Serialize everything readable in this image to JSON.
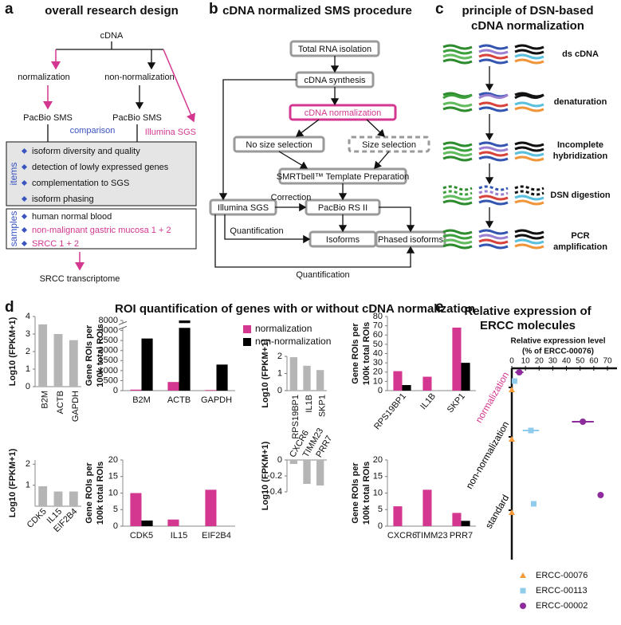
{
  "panel_a": {
    "label": "a",
    "title": "overall research design",
    "root": "cDNA",
    "branches": [
      "normalization",
      "non-normalization"
    ],
    "platforms": [
      "PacBio SMS",
      "PacBio SMS",
      "Illumina SGS"
    ],
    "comparison": "comparison",
    "items_label": "items",
    "items": [
      "isoform diversity and quality",
      "detection of lowly expressed genes",
      "complementation to SGS",
      "isoform phasing"
    ],
    "samples_label": "samples",
    "samples": [
      "human normal blood",
      "non-malignant gastric mucosa 1 + 2",
      "SRCC 1 + 2"
    ],
    "result": "SRCC transcriptome"
  },
  "panel_b": {
    "label": "b",
    "title": "cDNA normalized SMS procedure",
    "boxes": [
      "Total RNA isolation",
      "cDNA synthesis",
      "cDNA normalization",
      "No size selection",
      "Size selection",
      "SMRTbell™ Template Preparation",
      "Illumina SGS",
      "PacBio RS II",
      "Isoforms",
      "Phased isoforms"
    ],
    "edge_labels": [
      "Correction",
      "Quantification",
      "Quantification"
    ]
  },
  "panel_c": {
    "label": "c",
    "title": [
      "principle of DSN-based",
      "cDNA normalization"
    ],
    "steps": [
      "ds cDNA",
      "denaturation",
      [
        "Incomplete",
        "hybridization"
      ],
      "DSN digestion",
      [
        "PCR",
        "amplification"
      ]
    ]
  },
  "panel_d": {
    "label": "d",
    "title": "ROI quantification of genes with or without cDNA normalization"
  },
  "panel_e": {
    "label": "e"
  },
  "chart_data": [
    {
      "type": "bar",
      "ylabel": "Log10 (FPKM+1)",
      "categories": [
        "B2M",
        "ACTB",
        "GAPDH"
      ],
      "values": [
        3.55,
        3.0,
        2.65
      ],
      "color": "#b5b5b5",
      "ylim": [
        0,
        4
      ],
      "yticks": [
        0,
        1,
        2,
        3,
        4
      ]
    },
    {
      "type": "bar",
      "ylabel": [
        "Gene ROIs per",
        "100k total ROIs"
      ],
      "categories": [
        "B2M",
        "ACTB",
        "GAPDH"
      ],
      "series": [
        {
          "name": "normalization",
          "color": "#d4378f",
          "values": [
            50,
            430,
            30
          ]
        },
        {
          "name": "non-normalization",
          "color": "#000000",
          "values": [
            2600,
            8000,
            1300
          ]
        }
      ],
      "ylim": [
        0,
        8000
      ],
      "yticks": [
        0,
        500,
        1000,
        1500,
        2000,
        2500,
        3000,
        8000
      ],
      "broken_axis": true,
      "legend": true
    },
    {
      "type": "bar",
      "ylabel": "Log10 (FPKM+1)",
      "categories": [
        "RPS19BP1",
        "IL1B",
        "SKP1"
      ],
      "values": [
        1.95,
        1.45,
        1.2
      ],
      "color": "#b5b5b5",
      "ylim": [
        0,
        2
      ],
      "yticks": [
        0,
        1,
        2
      ]
    },
    {
      "type": "bar",
      "ylabel": [
        "Gene ROIs per",
        "100k total ROIs"
      ],
      "categories": [
        "RPS19BP1",
        "IL1B",
        "SKP1"
      ],
      "series": [
        {
          "color": "#d4378f",
          "values": [
            21,
            15,
            68
          ]
        },
        {
          "color": "#000000",
          "values": [
            6,
            0,
            30
          ]
        }
      ],
      "ylim": [
        0,
        80
      ],
      "yticks": [
        0,
        10,
        20,
        30,
        40,
        50,
        60,
        70,
        80
      ]
    },
    {
      "type": "bar",
      "ylabel": "Log10 (FPKM+1)",
      "categories": [
        "CDK5",
        "IL15",
        "EIF2B4"
      ],
      "values": [
        0.95,
        0.7,
        0.7
      ],
      "color": "#b5b5b5",
      "ylim": [
        0,
        2.2
      ],
      "yticks": [
        1,
        2
      ]
    },
    {
      "type": "bar",
      "ylabel": [
        "Gene ROIs per",
        "100k total ROIs"
      ],
      "categories": [
        "CDK5",
        "IL15",
        "EIF2B4"
      ],
      "series": [
        {
          "color": "#d4378f",
          "values": [
            10,
            2,
            11
          ]
        },
        {
          "color": "#000000",
          "values": [
            1.7,
            0,
            0
          ]
        }
      ],
      "ylim": [
        0,
        20
      ],
      "yticks": [
        0,
        5,
        10,
        15,
        20
      ]
    },
    {
      "type": "bar",
      "ylabel": "Log10 (FPKM+1)",
      "categories": [
        "CXCR6",
        "TIMM23",
        "PRR7"
      ],
      "values": [
        -0.05,
        -0.3,
        -0.32
      ],
      "color": "#b5b5b5",
      "ylim": [
        -0.4,
        0
      ],
      "yticks": [
        0,
        -0.2,
        -0.4
      ]
    },
    {
      "type": "bar",
      "ylabel": [
        "Gene ROIs per",
        "100k total ROIs"
      ],
      "categories": [
        "CXCR6",
        "TIMM23",
        "PRR7"
      ],
      "series": [
        {
          "color": "#d4378f",
          "values": [
            6,
            11,
            4
          ]
        },
        {
          "color": "#000000",
          "values": [
            0,
            0,
            1.6
          ]
        }
      ],
      "ylim": [
        0,
        20
      ],
      "yticks": [
        0,
        5,
        10,
        15,
        20
      ]
    },
    {
      "type": "dot",
      "title": [
        "Relative expression of",
        "ERCC molecules"
      ],
      "xlabel": [
        "Relative expression level",
        "(% of ERCC-00076)"
      ],
      "categories": [
        "normalization",
        "non-normalization",
        "standard"
      ],
      "category_colors": [
        "#d4378f",
        "#000000",
        "#000000"
      ],
      "series": [
        {
          "name": "ERCC-00076",
          "color": "#f39a3a",
          "marker": "triangle",
          "values": [
            0,
            0,
            0
          ],
          "errors": [
            0.5,
            0.5,
            0.5
          ]
        },
        {
          "name": "ERCC-00113",
          "color": "#8fcbea",
          "marker": "square",
          "values": [
            2,
            14,
            16
          ],
          "errors": [
            1.5,
            6,
            1
          ]
        },
        {
          "name": "ERCC-00002",
          "color": "#8e2c9e",
          "marker": "circle",
          "values": [
            5.5,
            52,
            65
          ],
          "errors": [
            3,
            8,
            1
          ]
        }
      ],
      "xlim": [
        0,
        70
      ],
      "xticks": [
        0,
        10,
        20,
        30,
        40,
        50,
        60,
        70
      ]
    }
  ]
}
